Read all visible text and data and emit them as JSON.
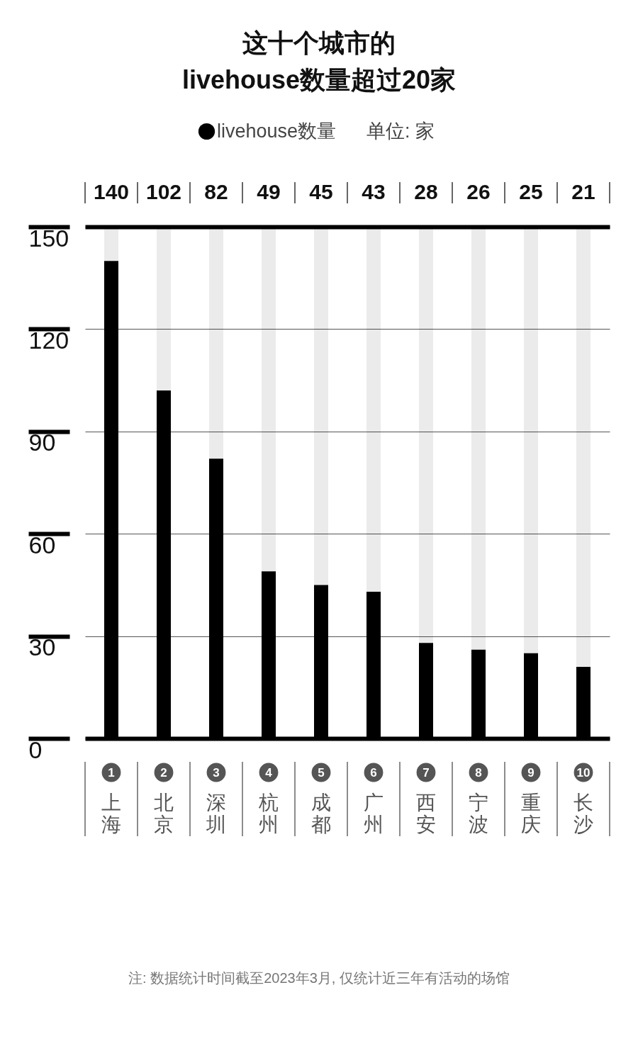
{
  "chart_data": {
    "type": "bar",
    "title": "这十个城市的\nlivehouse数量超过20家",
    "subtitle": "单位: 家",
    "categories": [
      "上海",
      "北京",
      "深圳",
      "杭州",
      "成都",
      "广州",
      "西安",
      "宁波",
      "重庆",
      "长沙"
    ],
    "series": [
      {
        "name": "livehouse数量",
        "color": "#000000",
        "values": [
          140,
          102,
          82,
          49,
          45,
          43,
          28,
          26,
          25,
          21
        ]
      }
    ],
    "ylim": [
      0,
      150
    ],
    "yticks": [
      0,
      30,
      60,
      90,
      120,
      150
    ],
    "grid": "y",
    "legend": "top",
    "data_labels": true,
    "annotations": [
      "1",
      "2",
      "3",
      "4",
      "5",
      "6",
      "7",
      "8",
      "9",
      "10",
      "注: 数据统计时间截至2023年3月, 仅统计近三年有活动的场馆"
    ]
  }
}
